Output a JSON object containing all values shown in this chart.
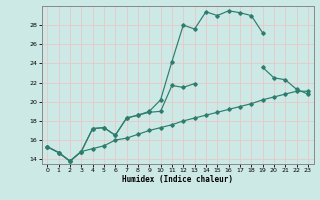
{
  "xlabel": "Humidex (Indice chaleur)",
  "bg_color": "#cce9e5",
  "line_color": "#2d7d6e",
  "grid_color": "#e8c8c8",
  "xlim": [
    -0.5,
    23.5
  ],
  "ylim": [
    13.5,
    30.0
  ],
  "yticks": [
    14,
    16,
    18,
    20,
    22,
    24,
    26,
    28
  ],
  "xticks": [
    0,
    1,
    2,
    3,
    4,
    5,
    6,
    7,
    8,
    9,
    10,
    11,
    12,
    13,
    14,
    15,
    16,
    17,
    18,
    19,
    20,
    21,
    22,
    23
  ],
  "line1_y": [
    15.3,
    14.7,
    13.8,
    14.8,
    17.2,
    17.3,
    16.5,
    18.3,
    18.6,
    19.0,
    20.2,
    24.2,
    28.0,
    27.6,
    29.4,
    29.0,
    29.5,
    29.3,
    29.0,
    27.2,
    null,
    null,
    null,
    null
  ],
  "line2_y": [
    15.3,
    14.7,
    13.8,
    14.8,
    17.2,
    17.3,
    16.5,
    18.3,
    18.6,
    18.9,
    19.0,
    21.7,
    21.5,
    21.9,
    null,
    null,
    null,
    null,
    null,
    23.6,
    22.5,
    22.3,
    21.3,
    20.8
  ],
  "line3_y": [
    15.3,
    14.7,
    13.8,
    14.8,
    15.1,
    15.4,
    16.0,
    16.2,
    16.6,
    17.0,
    17.3,
    17.6,
    18.0,
    18.3,
    18.6,
    18.9,
    19.2,
    19.5,
    19.8,
    20.2,
    20.5,
    20.8,
    21.1,
    21.1
  ]
}
